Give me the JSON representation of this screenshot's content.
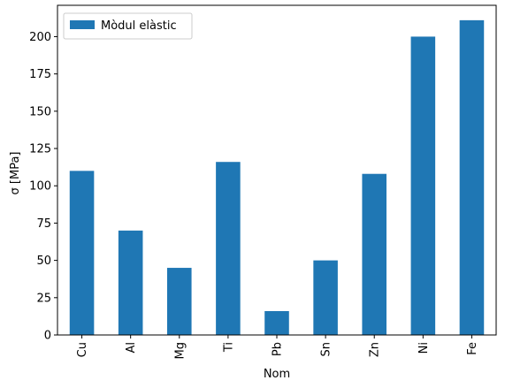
{
  "chart_data": {
    "type": "bar",
    "categories": [
      "Cu",
      "Al",
      "Mg",
      "Ti",
      "Pb",
      "Sn",
      "Zn",
      "Ni",
      "Fe"
    ],
    "series": [
      {
        "name": "Mòdul elàstic",
        "values": [
          110,
          70,
          45,
          116,
          16,
          50,
          108,
          200,
          211
        ],
        "color": "#1f77b4"
      }
    ],
    "xlabel": "Nom",
    "ylabel": "σ  [MPa]",
    "ylim": [
      0,
      221
    ],
    "yticks": [
      0,
      25,
      50,
      75,
      100,
      125,
      150,
      175,
      200
    ],
    "grid": false,
    "legend": "top-left"
  }
}
